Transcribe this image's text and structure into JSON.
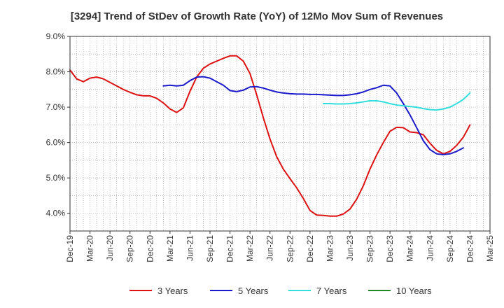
{
  "chart_data": {
    "type": "line",
    "title": "[3294]  Trend of StDev of Growth Rate (YoY) of 12Mo Mov Sum of Revenues",
    "xlabel": "",
    "ylabel": "",
    "ylim": [
      3.5,
      9.0
    ],
    "yticks": [
      4.0,
      5.0,
      6.0,
      7.0,
      8.0,
      9.0
    ],
    "ytick_labels": [
      "4.0%",
      "5.0%",
      "6.0%",
      "7.0%",
      "8.0%",
      "9.0%"
    ],
    "xlim_months": [
      0,
      63
    ],
    "x_tick_labels": [
      "Dec-19",
      "Mar-20",
      "Jun-20",
      "Sep-20",
      "Dec-20",
      "Mar-21",
      "Jun-21",
      "Sep-21",
      "Dec-21",
      "Mar-22",
      "Jun-22",
      "Sep-22",
      "Dec-22",
      "Mar-23",
      "Jun-23",
      "Sep-23",
      "Dec-23",
      "Mar-24",
      "Jun-24",
      "Sep-24",
      "Dec-24",
      "Mar-25"
    ],
    "grid": true,
    "legend_position": "bottom",
    "series": [
      {
        "name": "3 Years",
        "color": "#dd1111",
        "start_month": 0,
        "values": [
          8.05,
          7.8,
          7.72,
          7.82,
          7.85,
          7.8,
          7.7,
          7.6,
          7.5,
          7.42,
          7.35,
          7.32,
          7.32,
          7.25,
          7.12,
          6.95,
          6.85,
          6.98,
          7.45,
          7.85,
          8.1,
          8.22,
          8.3,
          8.38,
          8.45,
          8.45,
          8.3,
          7.95,
          7.35,
          6.7,
          6.1,
          5.6,
          5.25,
          4.98,
          4.72,
          4.42,
          4.08,
          3.95,
          3.94,
          3.92,
          3.92,
          3.98,
          4.12,
          4.4,
          4.78,
          5.25,
          5.65,
          6.0,
          6.32,
          6.43,
          6.42,
          6.3,
          6.28,
          6.22,
          5.98,
          5.78,
          5.68,
          5.75,
          5.92,
          6.15,
          6.5
        ]
      },
      {
        "name": "5 Years",
        "color": "#1a1acc",
        "start_month": 14,
        "values": [
          7.6,
          7.62,
          7.6,
          7.62,
          7.75,
          7.85,
          7.86,
          7.82,
          7.72,
          7.62,
          7.47,
          7.44,
          7.48,
          7.57,
          7.58,
          7.54,
          7.48,
          7.43,
          7.4,
          7.38,
          7.37,
          7.37,
          7.36,
          7.36,
          7.35,
          7.34,
          7.33,
          7.33,
          7.35,
          7.38,
          7.43,
          7.5,
          7.55,
          7.62,
          7.6,
          7.4,
          7.1,
          6.78,
          6.42,
          6.05,
          5.8,
          5.68,
          5.66,
          5.68,
          5.75,
          5.85
        ]
      },
      {
        "name": "7 Years",
        "color": "#33dddd",
        "start_month": 38,
        "values": [
          7.1,
          7.1,
          7.09,
          7.09,
          7.1,
          7.12,
          7.15,
          7.18,
          7.18,
          7.15,
          7.1,
          7.06,
          7.04,
          7.02,
          7.0,
          6.96,
          6.93,
          6.92,
          6.95,
          7.0,
          7.1,
          7.22,
          7.4
        ]
      },
      {
        "name": "10 Years",
        "color": "#228822",
        "start_month": 0,
        "values": []
      }
    ]
  }
}
